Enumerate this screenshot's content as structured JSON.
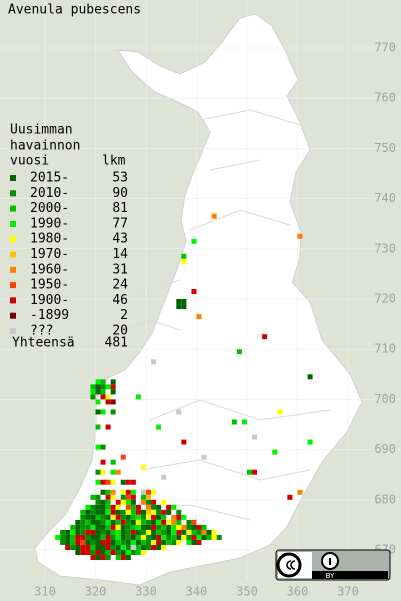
{
  "map": {
    "title": "Avenula pubescens",
    "legend_heading": [
      "Uusimman",
      "havainnon",
      "vuosi"
    ],
    "count_heading": "lkm",
    "legend": [
      {
        "label": "2015-",
        "count": 53,
        "color": "#006400"
      },
      {
        "label": "2010-",
        "count": 90,
        "color": "#009000"
      },
      {
        "label": "2000-",
        "count": 81,
        "color": "#00c000"
      },
      {
        "label": "1990-",
        "count": 77,
        "color": "#00f000"
      },
      {
        "label": "1980-",
        "count": 43,
        "color": "#ffff00"
      },
      {
        "label": "1970-",
        "count": 14,
        "color": "#ffc000"
      },
      {
        "label": "1960-",
        "count": 31,
        "color": "#ff8000"
      },
      {
        "label": "1950-",
        "count": 24,
        "color": "#ff4000"
      },
      {
        "label": "1900-",
        "count": 46,
        "color": "#d00000"
      },
      {
        "label": "-1899",
        "count": 2,
        "color": "#800000"
      },
      {
        "label": "???",
        "count": 20,
        "color": "#c8c8c8"
      }
    ],
    "total_label": "Yhteensä",
    "total": 481,
    "xticks": [
      310,
      320,
      330,
      340,
      350,
      360,
      370
    ],
    "yticks": [
      670,
      680,
      690,
      700,
      710,
      720,
      730,
      740,
      750,
      760,
      770
    ],
    "license": "BY",
    "records": [
      [
        343,
        736,
        6
      ],
      [
        360,
        732,
        6
      ],
      [
        339,
        731,
        3
      ],
      [
        337,
        728,
        2
      ],
      [
        337,
        727,
        4
      ],
      [
        339,
        721,
        8
      ],
      [
        336,
        719,
        0
      ],
      [
        337,
        719,
        0
      ],
      [
        336,
        718,
        0
      ],
      [
        337,
        718,
        0
      ],
      [
        340,
        716,
        6
      ],
      [
        353,
        712,
        8
      ],
      [
        348,
        709,
        2
      ],
      [
        362,
        704,
        0
      ],
      [
        331,
        707,
        10
      ],
      [
        328,
        700,
        3
      ],
      [
        356,
        697,
        4
      ],
      [
        347,
        695,
        2
      ],
      [
        349,
        695,
        3
      ],
      [
        362,
        691,
        3
      ],
      [
        337,
        691,
        8
      ],
      [
        351,
        692,
        10
      ],
      [
        355,
        689,
        3
      ],
      [
        341,
        688,
        10
      ],
      [
        350,
        685,
        2
      ],
      [
        351,
        685,
        8
      ],
      [
        360,
        681,
        6
      ],
      [
        358,
        680,
        8
      ],
      [
        332,
        694,
        3
      ],
      [
        336,
        697,
        10
      ],
      [
        325,
        688,
        7
      ],
      [
        329,
        686,
        4
      ],
      [
        333,
        684,
        10
      ],
      [
        327,
        683,
        8
      ]
    ],
    "rows": [
      {
        "n": 703,
        "e0": 320,
        "cells": [
          3,
          2,
          null,
          0
        ]
      },
      {
        "n": 702,
        "e0": 319,
        "cells": [
          2,
          0,
          1,
          3,
          8
        ]
      },
      {
        "n": 701,
        "e0": 319,
        "cells": [
          3,
          0,
          2,
          null,
          0
        ]
      },
      {
        "n": 700,
        "e0": 319,
        "cells": [
          1,
          null,
          8,
          4
        ]
      },
      {
        "n": 699,
        "e0": 320,
        "cells": [
          3,
          null,
          8,
          9
        ]
      },
      {
        "n": 697,
        "e0": 320,
        "cells": [
          0,
          3,
          null,
          1
        ]
      },
      {
        "n": 694,
        "e0": 320,
        "cells": [
          2,
          null,
          8
        ]
      },
      {
        "n": 690,
        "e0": 320,
        "cells": [
          3,
          1
        ]
      },
      {
        "n": 687,
        "e0": 321,
        "cells": [
          8,
          null,
          2
        ]
      },
      {
        "n": 685,
        "e0": 320,
        "cells": [
          1,
          4,
          null,
          3,
          6
        ]
      },
      {
        "n": 683,
        "e0": 320,
        "cells": [
          3,
          8,
          7,
          4,
          null,
          0,
          8
        ]
      },
      {
        "n": 681,
        "e0": 321,
        "cells": [
          0,
          2,
          6,
          null,
          4,
          8,
          3,
          null,
          10,
          7,
          4
        ]
      },
      {
        "n": 680,
        "e0": 319,
        "cells": [
          2,
          1,
          null,
          8,
          4,
          null,
          1,
          7,
          8,
          null,
          2,
          5
        ]
      },
      {
        "n": 679,
        "e0": 320,
        "cells": [
          1,
          0,
          2,
          null,
          8,
          4,
          3,
          0,
          null,
          6,
          1,
          8,
          null,
          4
        ]
      },
      {
        "n": 678,
        "e0": 318,
        "cells": [
          3,
          1,
          0,
          0,
          2,
          8,
          4,
          null,
          7,
          2,
          8,
          null,
          6,
          1,
          0,
          null,
          8,
          3
        ]
      },
      {
        "n": 677,
        "e0": 317,
        "cells": [
          2,
          0,
          1,
          0,
          0,
          3,
          8,
          0,
          1,
          4,
          2,
          8,
          0,
          5,
          4,
          1,
          8,
          0,
          null,
          1
        ]
      },
      {
        "n": 676,
        "e0": 317,
        "cells": [
          1,
          0,
          0,
          2,
          1,
          0,
          4,
          8,
          1,
          0,
          2,
          3,
          1,
          4,
          8,
          0,
          2,
          null,
          6,
          8,
          3
        ]
      },
      {
        "n": 675,
        "e0": 316,
        "cells": [
          0,
          1,
          2,
          0,
          0,
          1,
          3,
          0,
          2,
          8,
          1,
          0,
          4,
          2,
          1,
          0,
          3,
          8,
          4,
          6,
          2,
          null,
          1,
          7
        ]
      },
      {
        "n": 674,
        "e0": 315,
        "cells": [
          2,
          0,
          1,
          1,
          3,
          0,
          0,
          2,
          8,
          4,
          0,
          1,
          2,
          3,
          0,
          0,
          8,
          1,
          2,
          0,
          3,
          4,
          6,
          1,
          0,
          8,
          2
        ]
      },
      {
        "n": 673,
        "e0": 313,
        "cells": [
          1,
          0,
          3,
          0,
          1,
          8,
          8,
          0,
          1,
          0,
          2,
          3,
          0,
          1,
          8,
          0,
          1,
          4,
          0,
          2,
          1,
          0,
          3,
          8,
          0,
          4,
          2,
          1,
          6,
          0,
          4
        ]
      },
      {
        "n": 672,
        "e0": 312,
        "cells": [
          3,
          1,
          0,
          2,
          8,
          8,
          1,
          0,
          0,
          2,
          8,
          1,
          3,
          0,
          1,
          0,
          2,
          4,
          1,
          0,
          8,
          3,
          1,
          2,
          0,
          4,
          1,
          8,
          3,
          0,
          2,
          4,
          1
        ]
      },
      {
        "n": 671,
        "e0": 313,
        "cells": [
          1,
          0,
          2,
          8,
          7,
          0,
          1,
          0,
          8,
          8,
          0,
          2,
          1,
          0,
          3,
          0,
          2,
          1,
          4,
          8,
          0,
          2,
          1,
          4,
          null,
          3,
          0,
          8
        ]
      },
      {
        "n": 670,
        "e0": 314,
        "cells": [
          8,
          1,
          0,
          8,
          8,
          2,
          0,
          0,
          8,
          1,
          0,
          3,
          1,
          10,
          2,
          0,
          1,
          8,
          0,
          4
        ]
      },
      {
        "n": 669,
        "e0": 316,
        "cells": [
          0,
          8,
          8,
          1,
          8,
          0,
          2,
          8,
          1,
          0,
          3,
          1,
          2,
          4
        ]
      },
      {
        "n": 668,
        "e0": 319,
        "cells": [
          8,
          0,
          8,
          1,
          null,
          2,
          8,
          0
        ]
      }
    ]
  }
}
